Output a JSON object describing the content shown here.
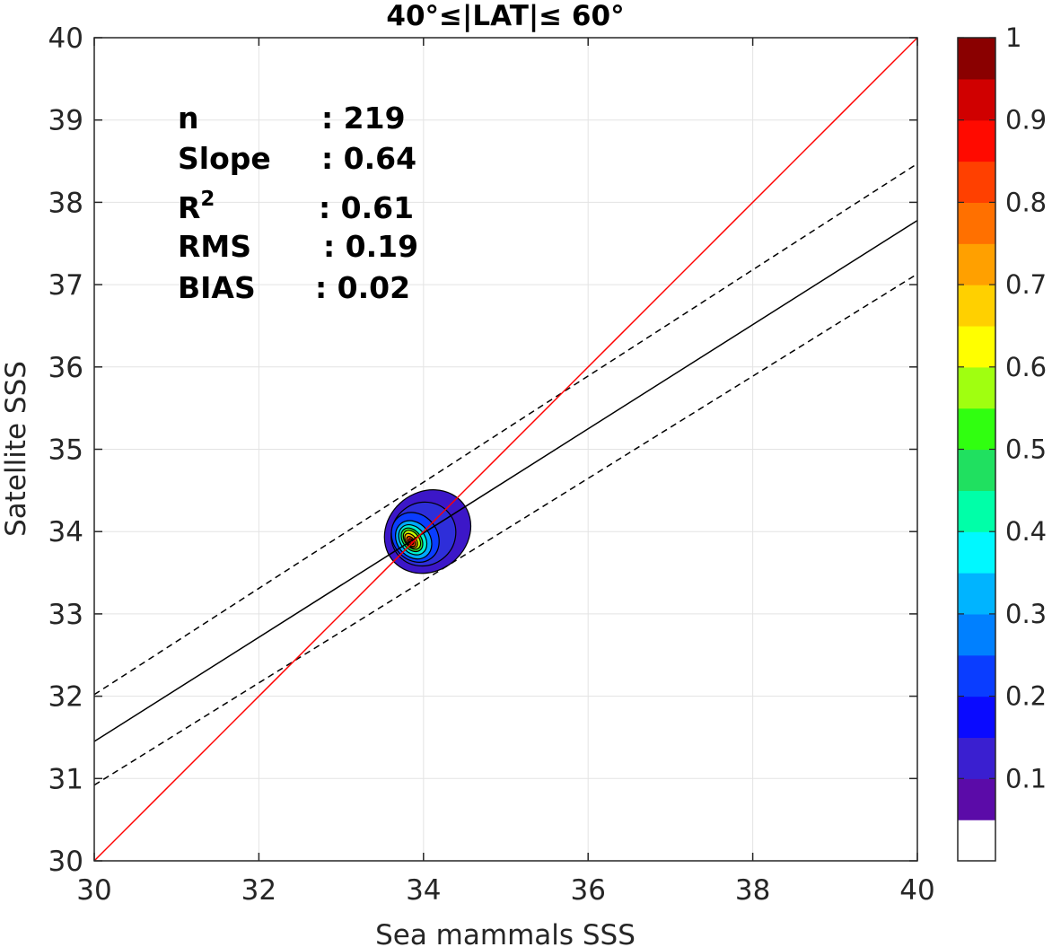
{
  "chart_data": {
    "type": "contour",
    "title": "40°≤|LAT|≤ 60°",
    "xlabel": "Sea mammals SSS",
    "ylabel": "Satellite SSS",
    "xlim": [
      30,
      40
    ],
    "ylim": [
      30,
      40
    ],
    "xticks": [
      "30",
      "32",
      "34",
      "36",
      "38",
      "40"
    ],
    "yticks": [
      "30",
      "31",
      "32",
      "33",
      "34",
      "35",
      "36",
      "37",
      "38",
      "39",
      "40"
    ],
    "grid": true,
    "stats": [
      {
        "label": "n",
        "value": ": 219"
      },
      {
        "label": "Slope",
        "value": ": 0.64"
      },
      {
        "label": "R",
        "sup": "2",
        "value": ": 0.61"
      },
      {
        "label": "RMS",
        "value": ": 0.19"
      },
      {
        "label": "BIAS",
        "value": ": 0.02"
      }
    ],
    "identity_line": {
      "color": "#ff0000",
      "from": [
        30,
        30
      ],
      "to": [
        40,
        40
      ]
    },
    "fit_line": {
      "color": "#000000",
      "from": [
        30,
        31.45
      ],
      "to": [
        40,
        37.78
      ]
    },
    "confidence_lines": [
      {
        "color": "#000000",
        "style": "dashed",
        "from": [
          30,
          32.02
        ],
        "to": [
          40,
          38.47
        ]
      },
      {
        "color": "#000000",
        "style": "dashed",
        "from": [
          30,
          30.92
        ],
        "to": [
          40,
          37.13
        ]
      }
    ],
    "density_center": [
      33.85,
      33.9
    ],
    "density_levels": [
      {
        "level": 0.05,
        "color": "#3c17c8",
        "cx": 34.05,
        "cy": 34.0,
        "rx": 0.55,
        "ry": 0.48
      },
      {
        "level": 0.1,
        "color": "#2e2ed9",
        "cx": 34.0,
        "cy": 33.97,
        "rx": 0.4,
        "ry": 0.38
      },
      {
        "level": 0.2,
        "color": "#0a3dff",
        "cx": 33.9,
        "cy": 33.93,
        "rx": 0.27,
        "ry": 0.32
      },
      {
        "level": 0.3,
        "color": "#00aaff",
        "cx": 33.88,
        "cy": 33.9,
        "rx": 0.2,
        "ry": 0.25
      },
      {
        "level": 0.4,
        "color": "#00f0d0",
        "cx": 33.87,
        "cy": 33.9,
        "rx": 0.15,
        "ry": 0.2
      },
      {
        "level": 0.5,
        "color": "#30e030",
        "cx": 33.86,
        "cy": 33.9,
        "rx": 0.11,
        "ry": 0.16
      },
      {
        "level": 0.6,
        "color": "#c8ff00",
        "cx": 33.86,
        "cy": 33.9,
        "rx": 0.085,
        "ry": 0.13
      },
      {
        "level": 0.7,
        "color": "#ffb000",
        "cx": 33.85,
        "cy": 33.89,
        "rx": 0.06,
        "ry": 0.1
      },
      {
        "level": 0.8,
        "color": "#ff4000",
        "cx": 33.85,
        "cy": 33.88,
        "rx": 0.04,
        "ry": 0.07
      },
      {
        "level": 0.9,
        "color": "#c80000",
        "cx": 33.85,
        "cy": 33.88,
        "rx": 0.022,
        "ry": 0.04
      }
    ],
    "colorbar": {
      "ticks": [
        "0.1",
        "0.2",
        "0.3",
        "0.4",
        "0.5",
        "0.6",
        "0.7",
        "0.8",
        "0.9",
        "1"
      ],
      "colors": [
        "#ffffff",
        "#5b0ba8",
        "#3a1fd0",
        "#0a0aff",
        "#0a3dff",
        "#0080ff",
        "#00b4ff",
        "#00f8ff",
        "#00ffa8",
        "#20e060",
        "#30ff10",
        "#a0ff10",
        "#ffff00",
        "#ffd000",
        "#ffa000",
        "#ff7000",
        "#ff4000",
        "#ff0a00",
        "#d00000",
        "#8a0000"
      ]
    }
  }
}
